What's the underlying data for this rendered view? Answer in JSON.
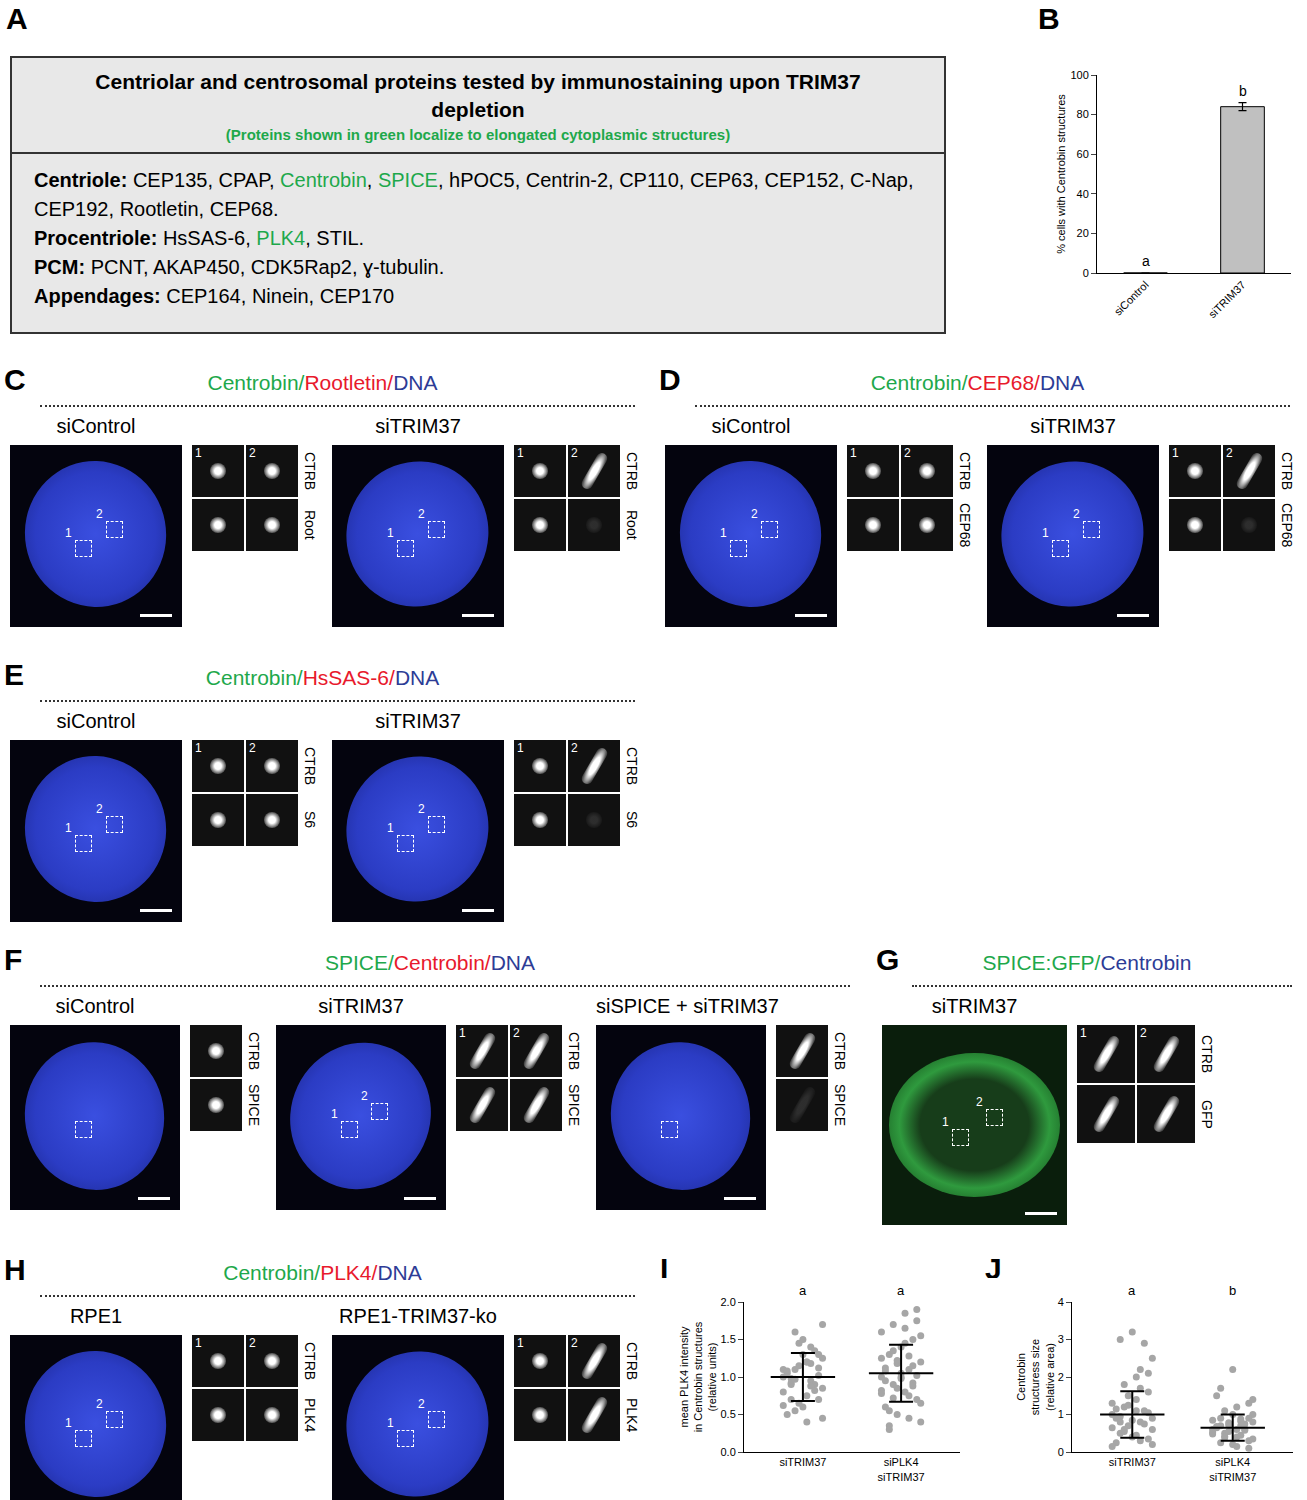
{
  "figure": {
    "A": {
      "letter": "A",
      "title": "Centriolar and centrosomal proteins tested by immunostaining upon TRIM37 depletion",
      "subtitle": "(Proteins shown in green localize to elongated cytoplasmic structures)",
      "highlighted": [
        "Centrobin",
        "SPICE",
        "PLK4"
      ],
      "highlight_color": "#1ea84b",
      "separator": ",",
      "rows": [
        {
          "heading": "Centriole:",
          "items": [
            "CEP135",
            "CPAP",
            "Centrobin",
            "SPICE",
            "hPOC5",
            "Centrin-2",
            "CP110",
            "CEP63",
            "CEP152",
            "C-Nap",
            "CEP192",
            "Rootletin",
            "CEP68"
          ],
          "end": "."
        },
        {
          "heading": "Procentriole:",
          "items": [
            "HsSAS-6",
            "PLK4",
            "STIL"
          ],
          "end": "."
        },
        {
          "heading": "PCM:",
          "items": [
            "PCNT",
            "AKAP450",
            "CDK5Rap2",
            "ɣ-tubulin"
          ],
          "end": "."
        },
        {
          "heading": "Appendages:",
          "items": [
            "CEP164",
            "Ninein",
            "CEP170"
          ]
        }
      ]
    },
    "micro": [
      {
        "letter": "C",
        "title": [
          {
            "text": "Centrobin/",
            "color": "#1ea84b"
          },
          {
            "text": "Rootletin/",
            "color": "#e8192c"
          },
          {
            "text": "DNA",
            "color": "#2d3c96"
          }
        ],
        "conditions": [
          {
            "name": "siControl",
            "insets": [
              "1",
              "2"
            ],
            "channels": [
              "CTRB",
              "Root"
            ]
          },
          {
            "name": "siTRIM37",
            "insets": [
              "1",
              "2"
            ],
            "channels": [
              "CTRB",
              "Root"
            ]
          }
        ]
      },
      {
        "letter": "D",
        "title": [
          {
            "text": "Centrobin/",
            "color": "#1ea84b"
          },
          {
            "text": "CEP68/",
            "color": "#e8192c"
          },
          {
            "text": "DNA",
            "color": "#2d3c96"
          }
        ],
        "conditions": [
          {
            "name": "siControl",
            "insets": [
              "1",
              "2"
            ],
            "channels": [
              "CTRB",
              "CEP68"
            ]
          },
          {
            "name": "siTRIM37",
            "insets": [
              "1",
              "2"
            ],
            "channels": [
              "CTRB",
              "CEP68"
            ]
          }
        ]
      },
      {
        "letter": "E",
        "title": [
          {
            "text": "Centrobin/",
            "color": "#1ea84b"
          },
          {
            "text": "HsSAS-6/",
            "color": "#e8192c"
          },
          {
            "text": "DNA",
            "color": "#2d3c96"
          }
        ],
        "conditions": [
          {
            "name": "siControl",
            "insets": [
              "1",
              "2"
            ],
            "channels": [
              "CTRB",
              "S6"
            ]
          },
          {
            "name": "siTRIM37",
            "insets": [
              "1",
              "2"
            ],
            "channels": [
              "CTRB",
              "S6"
            ]
          }
        ]
      },
      {
        "letter": "F",
        "title": [
          {
            "text": "SPICE/",
            "color": "#1ea84b"
          },
          {
            "text": "Centrobin/",
            "color": "#e8192c"
          },
          {
            "text": "DNA",
            "color": "#2d3c96"
          }
        ],
        "conditions": [
          {
            "name": "siControl",
            "columns": 1,
            "channels": [
              "CTRB",
              "SPICE"
            ]
          },
          {
            "name": "siTRIM37",
            "insets": [
              "1",
              "2"
            ],
            "channels": [
              "CTRB",
              "SPICE"
            ]
          },
          {
            "name": "siSPICE + siTRIM37",
            "columns": 1,
            "channels": [
              "CTRB",
              "SPICE"
            ]
          }
        ]
      },
      {
        "letter": "G",
        "title": [
          {
            "text": "SPICE:GFP/",
            "color": "#1ea84b"
          },
          {
            "text": "Centrobin",
            "color": "#2d3c96"
          }
        ],
        "conditions": [
          {
            "name": "siTRIM37",
            "insets": [
              "1",
              "2"
            ],
            "channels": [
              "CTRB",
              "GFP"
            ]
          }
        ]
      },
      {
        "letter": "H",
        "title": [
          {
            "text": "Centrobin/",
            "color": "#1ea84b"
          },
          {
            "text": "PLK4/",
            "color": "#e8192c"
          },
          {
            "text": "DNA",
            "color": "#2d3c96"
          }
        ],
        "conditions": [
          {
            "name": "RPE1",
            "insets": [
              "1",
              "2"
            ],
            "channels": [
              "CTRB",
              "PLK4"
            ]
          },
          {
            "name": "RPE1-TRIM37-ko",
            "insets": [
              "1",
              "2"
            ],
            "channels": [
              "CTRB",
              "PLK4"
            ]
          }
        ]
      }
    ]
  },
  "chart_data": [
    {
      "panel": "B",
      "type": "bar",
      "categories": [
        "siControl",
        "siTRIM37"
      ],
      "values": [
        0,
        84
      ],
      "errors": [
        0,
        2
      ],
      "significance": [
        "a",
        "b"
      ],
      "color": "#c0c0c0",
      "y_label": "% cells with Centrobin structures",
      "ylim": [
        0,
        100
      ],
      "yticks": [
        0,
        20,
        40,
        60,
        80,
        100
      ]
    },
    {
      "panel": "I",
      "type": "scatter",
      "categories": [
        "siTRIM37",
        "siPLK4 siTRIM37"
      ],
      "values": [
        [
          1.0,
          0.95,
          1.1,
          0.85,
          1.2,
          0.7,
          1.3,
          0.6,
          1.05,
          0.9,
          1.15,
          0.8,
          1.4,
          0.55,
          1.25,
          0.75,
          0.98,
          1.02,
          1.5,
          0.5,
          1.35,
          0.65,
          1.1,
          0.88,
          1.6,
          0.45,
          1.2,
          0.92,
          0.7,
          1.3,
          1.08,
          0.82,
          1.45,
          0.62,
          1.18,
          0.97,
          1.7,
          0.4,
          0.9,
          1.12
        ],
        [
          1.0,
          1.1,
          0.9,
          1.2,
          0.8,
          1.3,
          0.7,
          1.4,
          0.6,
          1.5,
          0.5,
          1.6,
          0.45,
          1.7,
          0.4,
          1.85,
          0.35,
          1.9,
          1.05,
          0.95,
          1.15,
          0.85,
          1.25,
          0.75,
          1.35,
          0.65,
          1.45,
          0.55,
          1.02,
          0.98,
          1.08,
          0.92,
          1.18,
          0.82,
          1.28,
          0.72,
          1.55,
          1.65,
          0.3,
          1.75,
          1.0,
          1.12,
          0.88,
          1.22,
          0.78
        ]
      ],
      "means": [
        1.0,
        1.05
      ],
      "sds": [
        0.32,
        0.38
      ],
      "significance": [
        "a",
        "a"
      ],
      "color": "#a6a6a6",
      "y_label": [
        "mean PLK4 intensity",
        "in Centrobin structures",
        "(relative units)"
      ],
      "ylim": [
        0,
        2
      ],
      "yticks": [
        {
          "value": 0,
          "label": "0.0"
        },
        {
          "value": 0.5,
          "label": "0.5"
        },
        {
          "value": 1,
          "label": "1.0"
        },
        {
          "value": 1.5,
          "label": "1.5"
        },
        {
          "value": 2,
          "label": "2.0"
        }
      ]
    },
    {
      "panel": "J",
      "type": "scatter",
      "categories": [
        "siTRIM37",
        "siPLK4 siTRIM37"
      ],
      "values": [
        [
          1.0,
          0.8,
          1.2,
          0.6,
          1.4,
          0.5,
          1.6,
          0.4,
          0.9,
          1.1,
          0.7,
          1.3,
          0.3,
          1.8,
          0.2,
          2.0,
          0.95,
          1.05,
          0.85,
          1.15,
          0.75,
          1.25,
          0.65,
          2.2,
          0.55,
          2.5,
          0.45,
          3.0,
          0.35,
          3.2,
          0.25,
          2.9,
          1.5,
          0.15,
          1.7,
          0.6,
          0.9,
          1.1,
          0.8,
          2.1
        ],
        [
          0.6,
          0.7,
          0.5,
          0.8,
          0.4,
          0.9,
          0.3,
          1.0,
          0.65,
          0.75,
          0.55,
          0.85,
          0.45,
          1.1,
          0.35,
          1.2,
          0.25,
          1.3,
          0.2,
          1.5,
          0.62,
          0.72,
          0.52,
          0.82,
          0.42,
          1.4,
          0.15,
          1.7,
          0.1,
          2.2,
          0.68,
          0.58,
          0.78,
          0.48,
          0.88,
          0.38,
          1.0,
          0.6,
          0.7,
          0.9
        ]
      ],
      "means": [
        1.0,
        0.65
      ],
      "sds": [
        0.62,
        0.35
      ],
      "significance": [
        "a",
        "b"
      ],
      "color": "#a6a6a6",
      "y_label": [
        "Centrobin",
        "structuress size",
        "(relative area)"
      ],
      "ylim": [
        0,
        4
      ],
      "yticks": [
        0,
        1,
        2,
        3,
        4
      ]
    }
  ]
}
